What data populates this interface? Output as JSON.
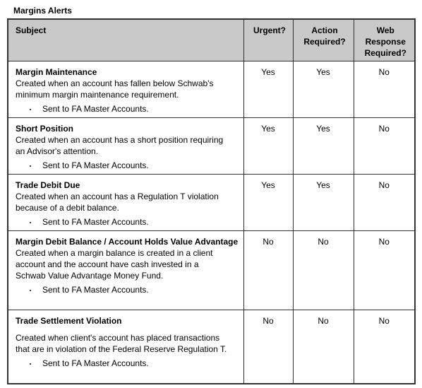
{
  "header": {
    "title": "Margins Alerts"
  },
  "table": {
    "columns": [
      "Subject",
      "Urgent?",
      "Action Required?",
      "Web Response Required?"
    ],
    "rows": [
      {
        "title": "Margin Maintenance",
        "description": "Created when an account has fallen below Schwab's minimum margin maintenance requirement.",
        "note": "Sent to FA Master Accounts.",
        "urgent": "Yes",
        "action": "Yes",
        "web": "No"
      },
      {
        "title": "Short Position",
        "description": "Created when an account has a short position requiring an Advisor's attention.",
        "note": "Sent to FA Master Accounts.",
        "urgent": "Yes",
        "action": "Yes",
        "web": "No"
      },
      {
        "title": "Trade Debit Due",
        "description": "Created when an account has a Regulation T violation because of a debit balance.",
        "note": "Sent to FA Master Accounts.",
        "urgent": "Yes",
        "action": "Yes",
        "web": "No"
      },
      {
        "title": "Margin Debit Balance / Account Holds Value Advantage",
        "description": "Created when a margin balance is created in a client account and the account have cash invested in a Schwab Value Advantage Money Fund.",
        "note": "Sent to FA Master Accounts.",
        "urgent": "No",
        "action": "No",
        "web": "No"
      },
      {
        "title": "Trade Settlement Violation",
        "description": "Created when client's account has placed transactions that are in violation of the Federal Reserve Regulation T.",
        "note": "Sent to FA Master Accounts.",
        "urgent": "No",
        "action": "No",
        "web": "No"
      }
    ]
  }
}
